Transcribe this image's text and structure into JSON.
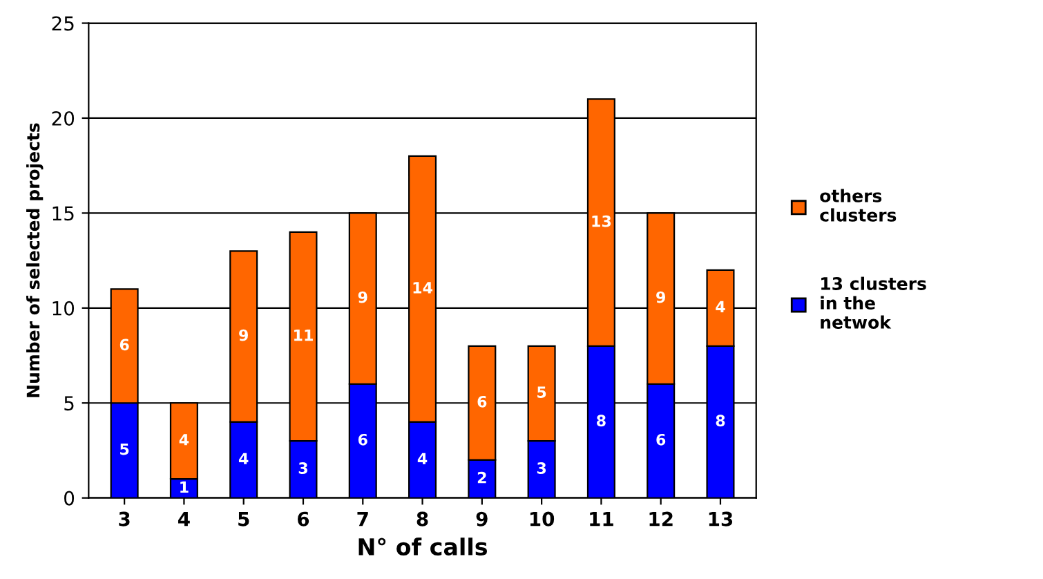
{
  "chart_data": {
    "type": "bar",
    "stacked": true,
    "xlabel": "N° of calls",
    "ylabel": "Number of selected projects",
    "categories": [
      "3",
      "4",
      "5",
      "6",
      "7",
      "8",
      "9",
      "10",
      "11",
      "12",
      "13"
    ],
    "series": [
      {
        "name": "13 clusters\nin the\nnetwok",
        "color": "#0000ff",
        "values": [
          5,
          1,
          4,
          3,
          6,
          4,
          2,
          3,
          8,
          6,
          8
        ]
      },
      {
        "name": "others\nclusters",
        "color": "#ff6600",
        "values": [
          6,
          4,
          9,
          11,
          9,
          14,
          6,
          5,
          13,
          9,
          4
        ]
      }
    ],
    "ylim": [
      0,
      25
    ],
    "yticks": [
      0,
      5,
      10,
      15,
      20,
      25
    ],
    "grid": "y",
    "legend": "right",
    "data_labels": true
  }
}
